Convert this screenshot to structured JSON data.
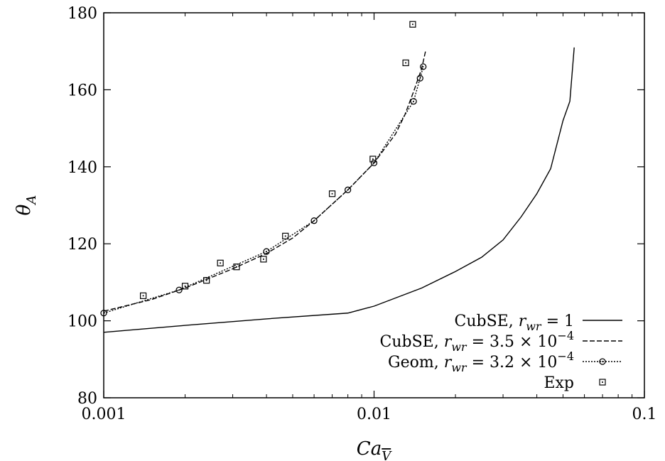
{
  "chart_data": {
    "type": "line",
    "xscale": "log",
    "xlim": [
      0.001,
      0.1
    ],
    "ylim": [
      80,
      180
    ],
    "xticks": [
      "0.001",
      "0.01",
      "0.1"
    ],
    "yticks": [
      "80",
      "100",
      "120",
      "140",
      "160",
      "180"
    ],
    "xlabel": {
      "main": "Ca",
      "sub": "V"
    },
    "ylabel": {
      "main": "θ",
      "sub": "A"
    },
    "grid": false,
    "legend_position": "bottom-right",
    "series": [
      {
        "name": "CubSE, r_wr = 1",
        "legend": {
          "prefix": "CubSE, ",
          "var": "r",
          "sub": "wr",
          "rest": " = 1"
        },
        "style": "solid",
        "x": [
          0.001,
          0.002,
          0.004,
          0.008,
          0.01,
          0.015,
          0.02,
          0.025,
          0.03,
          0.035,
          0.04,
          0.045,
          0.05,
          0.053,
          0.055
        ],
        "y": [
          97,
          98.8,
          100.5,
          102,
          103.8,
          108.5,
          112.8,
          116.5,
          121,
          127,
          133,
          139.5,
          152,
          157,
          171
        ]
      },
      {
        "name": "CubSE, r_wr = 3.5 × 10^-4",
        "legend": {
          "prefix": "CubSE, ",
          "var": "r",
          "sub": "wr",
          "rest": " = 3.5 × 10",
          "sup": "−4"
        },
        "style": "dashed",
        "x": [
          0.001,
          0.0015,
          0.002,
          0.003,
          0.004,
          0.005,
          0.006,
          0.008,
          0.01,
          0.012,
          0.013,
          0.014,
          0.015,
          0.0155
        ],
        "y": [
          102.5,
          105.5,
          108.5,
          113.5,
          117.5,
          121.5,
          126,
          134,
          141,
          148.5,
          153.5,
          159.5,
          165.5,
          170
        ]
      },
      {
        "name": "Geom, r_wr = 3.2 × 10^-4",
        "legend": {
          "prefix": "Geom, ",
          "var": "r",
          "sub": "wr",
          "rest": " = 3.2 × 10",
          "sup": "−4"
        },
        "style": "dotted-circle",
        "x": [
          0.001,
          0.0019,
          0.004,
          0.006,
          0.008,
          0.01,
          0.014,
          0.0148,
          0.0152
        ],
        "y": [
          102,
          108,
          118,
          126,
          134,
          141,
          157,
          163,
          166
        ]
      },
      {
        "name": "Exp",
        "legend": {
          "prefix": "Exp"
        },
        "style": "square",
        "x": [
          0.0014,
          0.002,
          0.0024,
          0.0027,
          0.0031,
          0.0039,
          0.0047,
          0.007,
          0.0099,
          0.0131,
          0.0139
        ],
        "y": [
          106.5,
          109,
          110.5,
          115,
          114,
          116,
          122,
          133,
          142,
          167,
          177
        ]
      }
    ]
  }
}
